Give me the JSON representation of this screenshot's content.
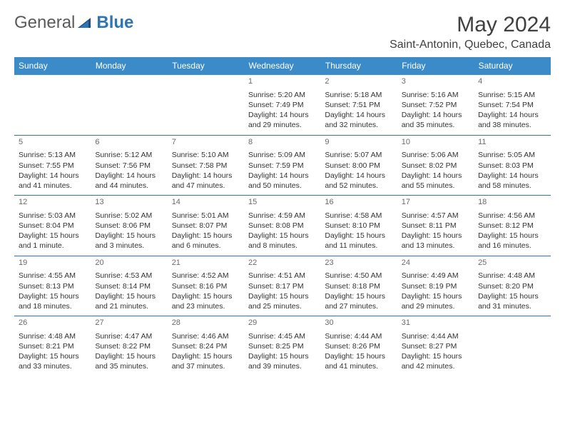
{
  "brand": {
    "part1": "General",
    "part2": "Blue"
  },
  "title": "May 2024",
  "location": "Saint-Antonin, Quebec, Canada",
  "colors": {
    "header_bg": "#3b8bc9",
    "accent": "#2e75b6",
    "text": "#333333"
  },
  "weekdays": [
    "Sunday",
    "Monday",
    "Tuesday",
    "Wednesday",
    "Thursday",
    "Friday",
    "Saturday"
  ],
  "weeks": [
    [
      null,
      null,
      null,
      {
        "n": "1",
        "l1": "Sunrise: 5:20 AM",
        "l2": "Sunset: 7:49 PM",
        "l3": "Daylight: 14 hours",
        "l4": "and 29 minutes."
      },
      {
        "n": "2",
        "l1": "Sunrise: 5:18 AM",
        "l2": "Sunset: 7:51 PM",
        "l3": "Daylight: 14 hours",
        "l4": "and 32 minutes."
      },
      {
        "n": "3",
        "l1": "Sunrise: 5:16 AM",
        "l2": "Sunset: 7:52 PM",
        "l3": "Daylight: 14 hours",
        "l4": "and 35 minutes."
      },
      {
        "n": "4",
        "l1": "Sunrise: 5:15 AM",
        "l2": "Sunset: 7:54 PM",
        "l3": "Daylight: 14 hours",
        "l4": "and 38 minutes."
      }
    ],
    [
      {
        "n": "5",
        "l1": "Sunrise: 5:13 AM",
        "l2": "Sunset: 7:55 PM",
        "l3": "Daylight: 14 hours",
        "l4": "and 41 minutes."
      },
      {
        "n": "6",
        "l1": "Sunrise: 5:12 AM",
        "l2": "Sunset: 7:56 PM",
        "l3": "Daylight: 14 hours",
        "l4": "and 44 minutes."
      },
      {
        "n": "7",
        "l1": "Sunrise: 5:10 AM",
        "l2": "Sunset: 7:58 PM",
        "l3": "Daylight: 14 hours",
        "l4": "and 47 minutes."
      },
      {
        "n": "8",
        "l1": "Sunrise: 5:09 AM",
        "l2": "Sunset: 7:59 PM",
        "l3": "Daylight: 14 hours",
        "l4": "and 50 minutes."
      },
      {
        "n": "9",
        "l1": "Sunrise: 5:07 AM",
        "l2": "Sunset: 8:00 PM",
        "l3": "Daylight: 14 hours",
        "l4": "and 52 minutes."
      },
      {
        "n": "10",
        "l1": "Sunrise: 5:06 AM",
        "l2": "Sunset: 8:02 PM",
        "l3": "Daylight: 14 hours",
        "l4": "and 55 minutes."
      },
      {
        "n": "11",
        "l1": "Sunrise: 5:05 AM",
        "l2": "Sunset: 8:03 PM",
        "l3": "Daylight: 14 hours",
        "l4": "and 58 minutes."
      }
    ],
    [
      {
        "n": "12",
        "l1": "Sunrise: 5:03 AM",
        "l2": "Sunset: 8:04 PM",
        "l3": "Daylight: 15 hours",
        "l4": "and 1 minute."
      },
      {
        "n": "13",
        "l1": "Sunrise: 5:02 AM",
        "l2": "Sunset: 8:06 PM",
        "l3": "Daylight: 15 hours",
        "l4": "and 3 minutes."
      },
      {
        "n": "14",
        "l1": "Sunrise: 5:01 AM",
        "l2": "Sunset: 8:07 PM",
        "l3": "Daylight: 15 hours",
        "l4": "and 6 minutes."
      },
      {
        "n": "15",
        "l1": "Sunrise: 4:59 AM",
        "l2": "Sunset: 8:08 PM",
        "l3": "Daylight: 15 hours",
        "l4": "and 8 minutes."
      },
      {
        "n": "16",
        "l1": "Sunrise: 4:58 AM",
        "l2": "Sunset: 8:10 PM",
        "l3": "Daylight: 15 hours",
        "l4": "and 11 minutes."
      },
      {
        "n": "17",
        "l1": "Sunrise: 4:57 AM",
        "l2": "Sunset: 8:11 PM",
        "l3": "Daylight: 15 hours",
        "l4": "and 13 minutes."
      },
      {
        "n": "18",
        "l1": "Sunrise: 4:56 AM",
        "l2": "Sunset: 8:12 PM",
        "l3": "Daylight: 15 hours",
        "l4": "and 16 minutes."
      }
    ],
    [
      {
        "n": "19",
        "l1": "Sunrise: 4:55 AM",
        "l2": "Sunset: 8:13 PM",
        "l3": "Daylight: 15 hours",
        "l4": "and 18 minutes."
      },
      {
        "n": "20",
        "l1": "Sunrise: 4:53 AM",
        "l2": "Sunset: 8:14 PM",
        "l3": "Daylight: 15 hours",
        "l4": "and 21 minutes."
      },
      {
        "n": "21",
        "l1": "Sunrise: 4:52 AM",
        "l2": "Sunset: 8:16 PM",
        "l3": "Daylight: 15 hours",
        "l4": "and 23 minutes."
      },
      {
        "n": "22",
        "l1": "Sunrise: 4:51 AM",
        "l2": "Sunset: 8:17 PM",
        "l3": "Daylight: 15 hours",
        "l4": "and 25 minutes."
      },
      {
        "n": "23",
        "l1": "Sunrise: 4:50 AM",
        "l2": "Sunset: 8:18 PM",
        "l3": "Daylight: 15 hours",
        "l4": "and 27 minutes."
      },
      {
        "n": "24",
        "l1": "Sunrise: 4:49 AM",
        "l2": "Sunset: 8:19 PM",
        "l3": "Daylight: 15 hours",
        "l4": "and 29 minutes."
      },
      {
        "n": "25",
        "l1": "Sunrise: 4:48 AM",
        "l2": "Sunset: 8:20 PM",
        "l3": "Daylight: 15 hours",
        "l4": "and 31 minutes."
      }
    ],
    [
      {
        "n": "26",
        "l1": "Sunrise: 4:48 AM",
        "l2": "Sunset: 8:21 PM",
        "l3": "Daylight: 15 hours",
        "l4": "and 33 minutes."
      },
      {
        "n": "27",
        "l1": "Sunrise: 4:47 AM",
        "l2": "Sunset: 8:22 PM",
        "l3": "Daylight: 15 hours",
        "l4": "and 35 minutes."
      },
      {
        "n": "28",
        "l1": "Sunrise: 4:46 AM",
        "l2": "Sunset: 8:24 PM",
        "l3": "Daylight: 15 hours",
        "l4": "and 37 minutes."
      },
      {
        "n": "29",
        "l1": "Sunrise: 4:45 AM",
        "l2": "Sunset: 8:25 PM",
        "l3": "Daylight: 15 hours",
        "l4": "and 39 minutes."
      },
      {
        "n": "30",
        "l1": "Sunrise: 4:44 AM",
        "l2": "Sunset: 8:26 PM",
        "l3": "Daylight: 15 hours",
        "l4": "and 41 minutes."
      },
      {
        "n": "31",
        "l1": "Sunrise: 4:44 AM",
        "l2": "Sunset: 8:27 PM",
        "l3": "Daylight: 15 hours",
        "l4": "and 42 minutes."
      },
      null
    ]
  ]
}
